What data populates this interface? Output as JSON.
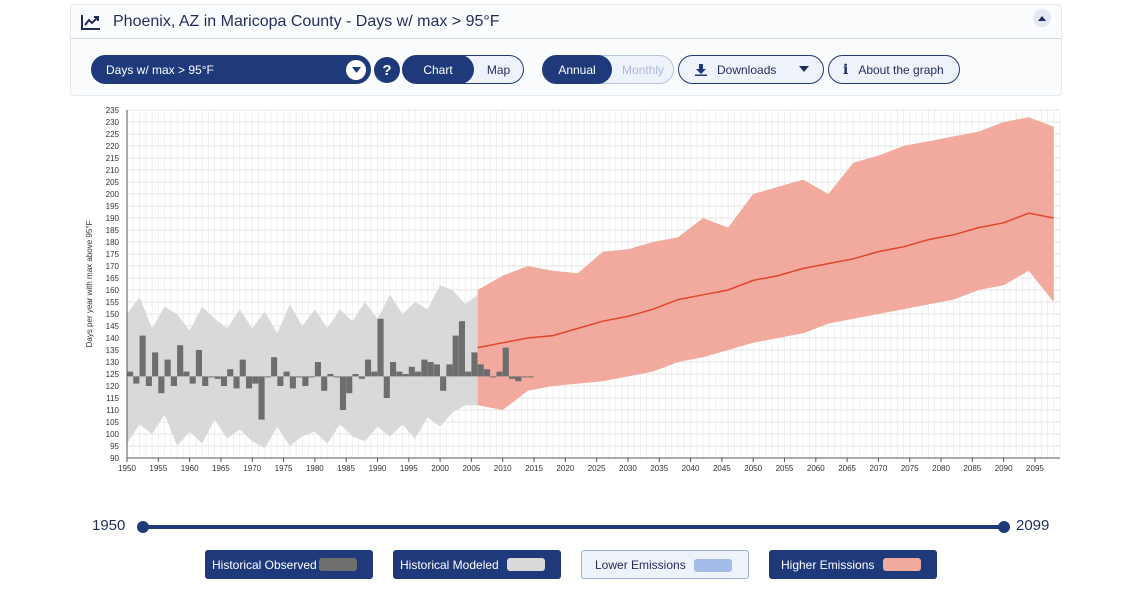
{
  "header": {
    "title": "Phoenix, AZ in Maricopa County - Days w/ max > 95°F"
  },
  "toolbar": {
    "variable": "Days w/ max > 95°F",
    "help": "?",
    "chart": "Chart",
    "map": "Map",
    "annual": "Annual",
    "monthly": "Monthly",
    "downloads": "Downloads",
    "about": "About the graph",
    "info": "i"
  },
  "slider": {
    "start": "1950",
    "end": "2099"
  },
  "legend": {
    "observed": "Historical Observed",
    "modeled": "Historical Modeled",
    "lower": "Lower Emissions",
    "higher": "Higher Emissions"
  },
  "colors": {
    "navy": "#1f3a7a",
    "observed": "#6e6e6e",
    "modeled": "#d9d9d9",
    "lower": "#a3bde8",
    "higher": "#f3aa9e",
    "higher_line": "#e0452b"
  },
  "chart_data": {
    "type": "area",
    "ylabel": "Days per year with max above 95°F",
    "ylim": [
      90,
      235
    ],
    "xlim": [
      1950,
      2099
    ],
    "baseline": 124,
    "x_ticks": [
      1950,
      1955,
      1960,
      1965,
      1970,
      1975,
      1980,
      1985,
      1990,
      1995,
      2000,
      2005,
      2010,
      2015,
      2020,
      2025,
      2030,
      2035,
      2040,
      2045,
      2050,
      2055,
      2060,
      2065,
      2070,
      2075,
      2080,
      2085,
      2090,
      2095
    ],
    "y_ticks": [
      90,
      95,
      100,
      105,
      110,
      115,
      120,
      125,
      130,
      135,
      140,
      145,
      150,
      155,
      160,
      165,
      170,
      175,
      180,
      185,
      190,
      195,
      200,
      205,
      210,
      215,
      220,
      225,
      230,
      235
    ],
    "historical_observed": {
      "name": "Historical Observed",
      "years": [
        1950,
        1951,
        1952,
        1953,
        1954,
        1955,
        1956,
        1957,
        1958,
        1959,
        1960,
        1961,
        1962,
        1963,
        1964,
        1965,
        1966,
        1967,
        1968,
        1969,
        1970,
        1971,
        1972,
        1973,
        1974,
        1975,
        1976,
        1977,
        1978,
        1979,
        1980,
        1981,
        1982,
        1983,
        1984,
        1985,
        1986,
        1987,
        1988,
        1989,
        1990,
        1991,
        1992,
        1993,
        1994,
        1995,
        1996,
        1997,
        1998,
        1999,
        2000,
        2001,
        2002,
        2003,
        2004,
        2005,
        2006,
        2007,
        2008,
        2009,
        2010,
        2011,
        2012,
        2013,
        2014
      ],
      "values": [
        126,
        121,
        141,
        120,
        134,
        117,
        131,
        120,
        137,
        126,
        121,
        135,
        120,
        124,
        123,
        120,
        127,
        119,
        131,
        119,
        121,
        106,
        124,
        132,
        120,
        126,
        119,
        124,
        120,
        124,
        130,
        118,
        125,
        124,
        110,
        117,
        125,
        123,
        131,
        126,
        148,
        115,
        130,
        126,
        125,
        128,
        126,
        131,
        130,
        129,
        118,
        129,
        141,
        147,
        126,
        134,
        129,
        127,
        124,
        126,
        136,
        123,
        122,
        124,
        124
      ]
    },
    "historical_modeled": {
      "name": "Historical Modeled",
      "years": [
        1950,
        1952,
        1954,
        1956,
        1958,
        1960,
        1962,
        1964,
        1966,
        1968,
        1970,
        1972,
        1974,
        1976,
        1978,
        1980,
        1982,
        1984,
        1986,
        1988,
        1990,
        1992,
        1994,
        1996,
        1998,
        2000,
        2002,
        2004,
        2006
      ],
      "upper": [
        150,
        157,
        144,
        153,
        150,
        143,
        153,
        148,
        144,
        152,
        144,
        151,
        142,
        154,
        145,
        152,
        144,
        152,
        147,
        155,
        148,
        158,
        150,
        155,
        152,
        162,
        160,
        154,
        158
      ],
      "lower": [
        96,
        104,
        100,
        108,
        95,
        101,
        96,
        106,
        98,
        102,
        97,
        94,
        103,
        95,
        99,
        101,
        96,
        104,
        99,
        97,
        103,
        99,
        104,
        98,
        107,
        103,
        109,
        112,
        112
      ]
    },
    "higher_emissions": {
      "name": "Higher Emissions",
      "years": [
        2006,
        2010,
        2014,
        2018,
        2022,
        2026,
        2030,
        2034,
        2038,
        2042,
        2046,
        2050,
        2054,
        2058,
        2062,
        2066,
        2070,
        2074,
        2078,
        2082,
        2086,
        2090,
        2094,
        2098
      ],
      "mean": [
        136,
        138,
        140,
        141,
        144,
        147,
        149,
        152,
        156,
        158,
        160,
        164,
        166,
        169,
        171,
        173,
        176,
        178,
        181,
        183,
        186,
        188,
        192,
        190
      ],
      "upper": [
        160,
        166,
        170,
        168,
        167,
        176,
        177,
        180,
        182,
        190,
        186,
        200,
        203,
        206,
        200,
        213,
        216,
        220,
        222,
        224,
        226,
        230,
        232,
        228
      ],
      "lower": [
        112,
        110,
        118,
        120,
        121,
        122,
        124,
        126,
        130,
        132,
        135,
        138,
        140,
        142,
        146,
        148,
        150,
        152,
        154,
        156,
        160,
        162,
        168,
        155
      ]
    }
  }
}
